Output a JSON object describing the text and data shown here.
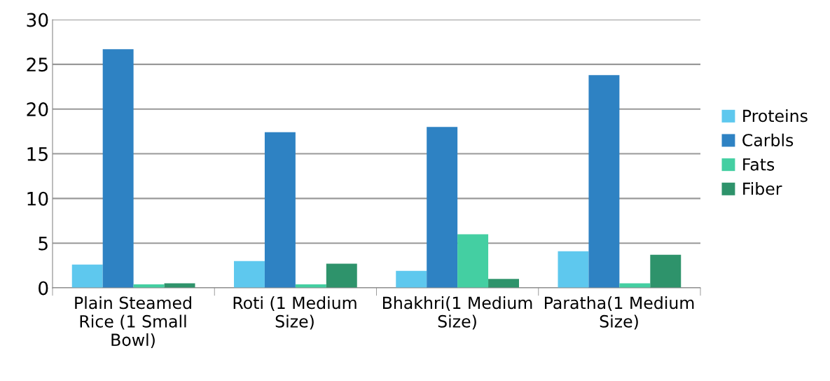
{
  "chart_data": {
    "type": "bar",
    "categories": [
      "Plain Steamed Rice (1 Small Bowl)",
      "Roti (1 Medium Size)",
      "Bhakhri(1 Medium Size)",
      "Paratha(1 Medium Size)"
    ],
    "series": [
      {
        "name": "Proteins",
        "color": "#5ec8ee",
        "values": [
          2.6,
          3.0,
          1.9,
          4.1
        ]
      },
      {
        "name": "Carbls",
        "color": "#2e82c3",
        "values": [
          26.7,
          17.4,
          18.0,
          23.8
        ]
      },
      {
        "name": "Fats",
        "color": "#44cfa2",
        "values": [
          0.4,
          0.4,
          6.0,
          0.5
        ]
      },
      {
        "name": "Fiber",
        "color": "#2e936b",
        "values": [
          0.5,
          2.7,
          1.0,
          3.7
        ]
      }
    ],
    "ylim": [
      0,
      30
    ],
    "yticks": [
      0,
      5,
      10,
      15,
      20,
      25,
      30
    ],
    "grid": "y",
    "legend": "right"
  }
}
